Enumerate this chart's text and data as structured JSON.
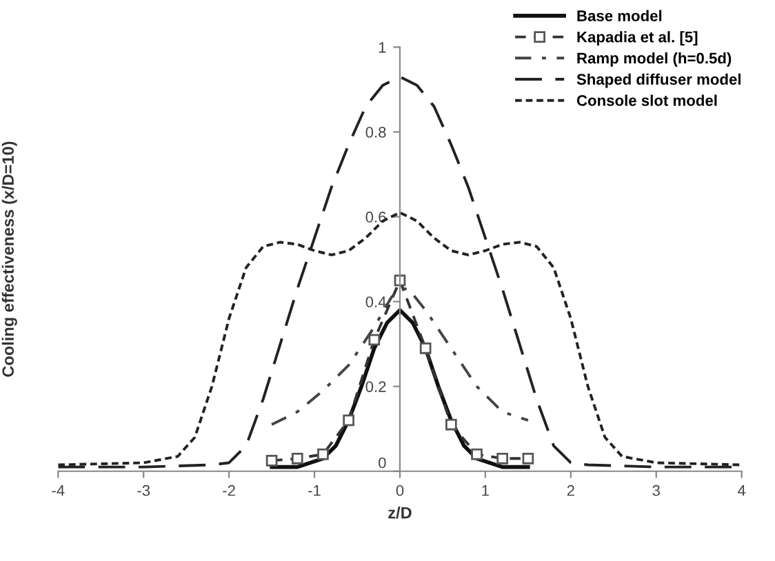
{
  "chart_data": {
    "type": "line",
    "xlabel": "z/D",
    "ylabel": "Cooling effectiveness (x/D=10)",
    "xlim": [
      -4,
      4
    ],
    "ylim": [
      0,
      1
    ],
    "xticks": [
      -4,
      -3,
      -2,
      -1,
      0,
      1,
      2,
      3,
      4
    ],
    "yticks": [
      0,
      0.2,
      0.4,
      0.6,
      0.8,
      1
    ],
    "grid": false,
    "legend": "top right",
    "series": [
      {
        "name": "Base model",
        "color": "#111111",
        "line_style": "solid",
        "marker": "none",
        "x": [
          -1.5,
          -1.2,
          -0.9,
          -0.75,
          -0.6,
          -0.45,
          -0.3,
          -0.15,
          0,
          0.15,
          0.3,
          0.45,
          0.6,
          0.75,
          0.9,
          1.2,
          1.5
        ],
        "values": [
          0.01,
          0.01,
          0.03,
          0.06,
          0.12,
          0.2,
          0.29,
          0.35,
          0.38,
          0.35,
          0.29,
          0.2,
          0.12,
          0.06,
          0.03,
          0.01,
          0.01
        ]
      },
      {
        "name": "Kapadia et al. [5]",
        "color": "#333333",
        "line_style": "dashed",
        "marker": "square",
        "x": [
          -1.5,
          -1.2,
          -0.9,
          -0.6,
          -0.3,
          0,
          0.3,
          0.6,
          0.9,
          1.2,
          1.5
        ],
        "values": [
          0.025,
          0.03,
          0.04,
          0.12,
          0.31,
          0.45,
          0.29,
          0.11,
          0.04,
          0.03,
          0.03
        ]
      },
      {
        "name": "Ramp model (h=0.5d)",
        "color": "#444444",
        "line_style": "dashdot",
        "marker": "none",
        "x": [
          -1.5,
          -1.2,
          -0.9,
          -0.6,
          -0.3,
          -0.1,
          0,
          0.1,
          0.3,
          0.6,
          0.9,
          1.2,
          1.5
        ],
        "values": [
          0.11,
          0.14,
          0.19,
          0.25,
          0.34,
          0.41,
          0.43,
          0.43,
          0.38,
          0.29,
          0.2,
          0.14,
          0.12
        ]
      },
      {
        "name": "Shaped diffuser model",
        "color": "#222222",
        "line_style": "longdash",
        "marker": "none",
        "x": [
          -4,
          -3,
          -2.2,
          -2,
          -1.8,
          -1.6,
          -1.4,
          -1.2,
          -1,
          -0.8,
          -0.6,
          -0.4,
          -0.2,
          0,
          0.2,
          0.4,
          0.6,
          0.8,
          1,
          1.2,
          1.4,
          1.6,
          1.8,
          2,
          2.2,
          3,
          4
        ],
        "values": [
          0.01,
          0.01,
          0.015,
          0.02,
          0.06,
          0.17,
          0.3,
          0.43,
          0.55,
          0.67,
          0.77,
          0.86,
          0.91,
          0.93,
          0.91,
          0.86,
          0.77,
          0.67,
          0.55,
          0.43,
          0.3,
          0.17,
          0.06,
          0.02,
          0.015,
          0.01,
          0.01
        ]
      },
      {
        "name": "Console slot model",
        "color": "#222222",
        "line_style": "shortdash",
        "marker": "none",
        "x": [
          -4,
          -3,
          -2.6,
          -2.4,
          -2.2,
          -2,
          -1.8,
          -1.6,
          -1.4,
          -1.2,
          -1,
          -0.8,
          -0.6,
          -0.4,
          -0.2,
          0,
          0.2,
          0.4,
          0.6,
          0.8,
          1,
          1.2,
          1.4,
          1.6,
          1.8,
          2,
          2.2,
          2.4,
          2.6,
          3,
          4
        ],
        "values": [
          0.015,
          0.02,
          0.035,
          0.08,
          0.2,
          0.36,
          0.48,
          0.53,
          0.54,
          0.535,
          0.52,
          0.51,
          0.52,
          0.55,
          0.59,
          0.61,
          0.59,
          0.55,
          0.52,
          0.51,
          0.52,
          0.535,
          0.54,
          0.53,
          0.48,
          0.36,
          0.2,
          0.08,
          0.035,
          0.02,
          0.015
        ]
      }
    ]
  }
}
